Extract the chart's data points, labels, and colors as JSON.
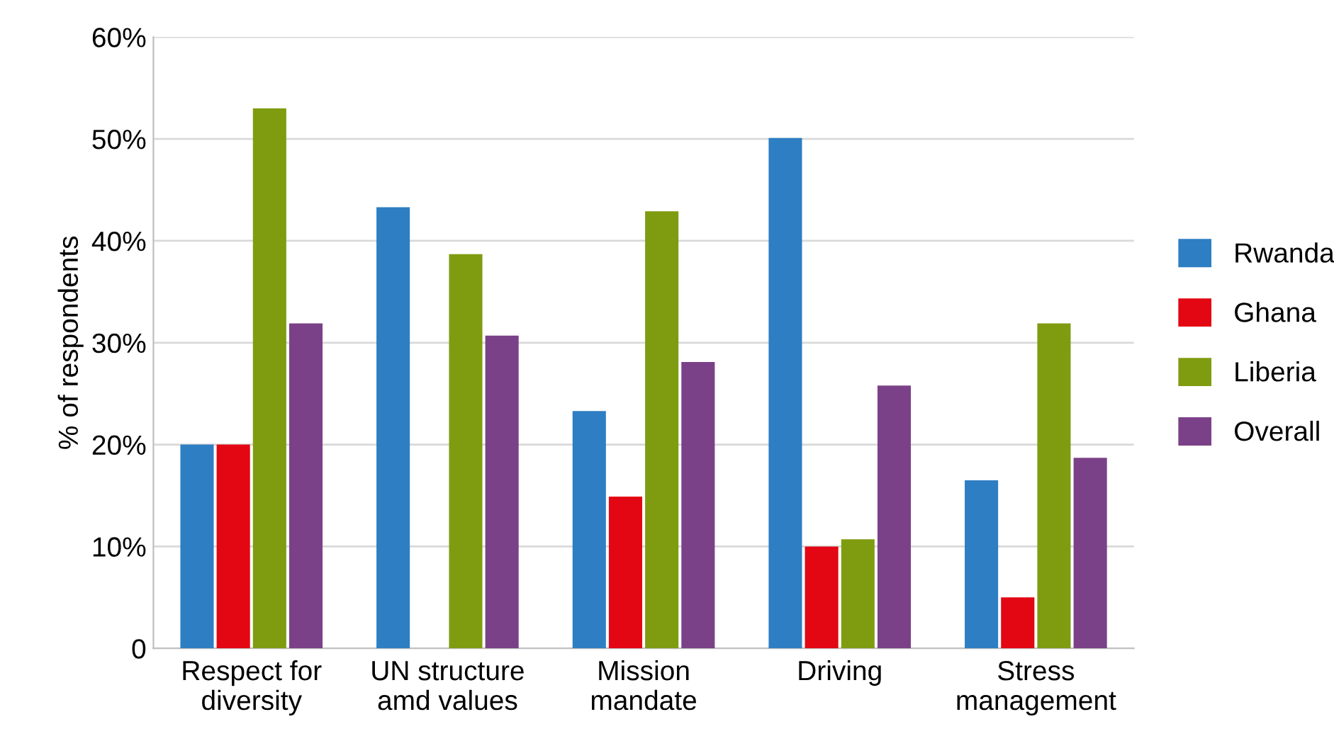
{
  "chart_data": {
    "type": "bar",
    "ylabel": "% of respondents",
    "categories": [
      "Respect for\ndiversity",
      "UN structure\namd values",
      "Mission\nmandate",
      "Driving",
      "Stress\nmanagement"
    ],
    "series": [
      {
        "name": "Rwanda",
        "color": "#2e7ec3",
        "values": [
          20.0,
          43.3,
          23.3,
          50.1,
          16.5
        ]
      },
      {
        "name": "Ghana",
        "color": "#e30613",
        "values": [
          20.0,
          0,
          14.9,
          10.0,
          5.0
        ]
      },
      {
        "name": "Liberia",
        "color": "#7f9c10",
        "values": [
          53.0,
          38.7,
          42.9,
          10.7,
          31.9
        ]
      },
      {
        "name": "Overall",
        "color": "#7b4188",
        "values": [
          31.9,
          30.7,
          28.1,
          25.8,
          18.7
        ]
      }
    ],
    "ylim": [
      0,
      60
    ],
    "yticks": [
      {
        "value": 0,
        "label": "0"
      },
      {
        "value": 10,
        "label": "10%"
      },
      {
        "value": 20,
        "label": "20%"
      },
      {
        "value": 30,
        "label": "30%"
      },
      {
        "value": 40,
        "label": "40%"
      },
      {
        "value": 50,
        "label": "50%"
      },
      {
        "value": 60,
        "label": "60%"
      }
    ],
    "grid": "y",
    "legend": "right"
  }
}
